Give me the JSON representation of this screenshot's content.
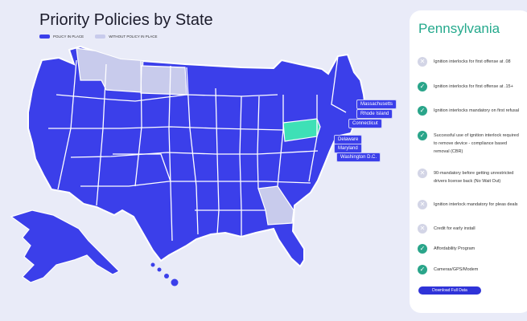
{
  "page": {
    "title": "Priority Policies by State"
  },
  "legend": {
    "items": [
      {
        "label": "POLICY IN PLACE",
        "color": "#3b3fea"
      },
      {
        "label": "WITHOUT POLICY IN PLACE",
        "color": "#c8cbec"
      }
    ]
  },
  "map": {
    "colors": {
      "policy": "#3b3fea",
      "no_policy": "#c8cbec",
      "selected": "#3ee0b6",
      "border": "#ffffff"
    },
    "selected_state": "Pennsylvania",
    "states_without_policy": [
      "Montana",
      "North Dakota",
      "Georgia"
    ],
    "callouts": [
      "Massachusetts",
      "Rhode Island",
      "Connecticut",
      "Delaware",
      "Maryland",
      "Washington D.C."
    ]
  },
  "panel": {
    "title": "Pennsylvania",
    "policies": [
      {
        "text": "Ignition interlocks for first offense at .08",
        "status": "no",
        "icon": "x-icon"
      },
      {
        "text": "Ignition interlocks for first offense at .15+",
        "status": "yes",
        "icon": "check-icon"
      },
      {
        "text": "Ignition interlocks mandatory on first refusal",
        "status": "yes",
        "icon": "check-icon"
      },
      {
        "text": "Successful use of ignition interlock required to remove device - compliance based removal (CBR)",
        "status": "yes",
        "icon": "check-icon"
      },
      {
        "text": "90-mandatory before getting unrestricted drivers license back (No Wait Out)",
        "status": "no",
        "icon": "x-icon"
      },
      {
        "text": "Ignition interlock mandatory for pleas deals",
        "status": "no",
        "icon": "x-icon"
      },
      {
        "text": "Credit for early install",
        "status": "no",
        "icon": "x-icon"
      },
      {
        "text": "Affordability Program",
        "status": "yes",
        "icon": "check-icon"
      },
      {
        "text": "Cameras/GPS/Modem",
        "status": "yes",
        "icon": "check-icon"
      }
    ],
    "download_label": "Download Full Data"
  }
}
